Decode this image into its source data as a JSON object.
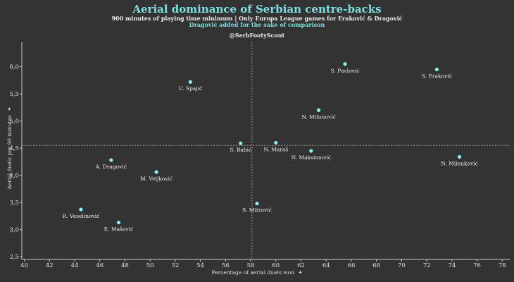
{
  "chart_data": {
    "type": "scatter",
    "title": "Aerial dominance of Serbian centre-backs",
    "subtitle": "900 minutes of playing time minimum | Only Europa League games for Eraković & Dragović",
    "subtitle2": "Dragović added for the sake of comparison",
    "annotation": "@SerbFootyScout",
    "xlabel": "Percentage of aerial duels won",
    "ylabel": "Aerial duels per 90 minutes",
    "label_icon": "✦",
    "xlim": [
      39.8,
      78.6
    ],
    "ylim": [
      2.45,
      6.45
    ],
    "xticks": [
      40,
      42,
      44,
      46,
      48,
      50,
      52,
      54,
      56,
      58,
      60,
      62,
      64,
      66,
      68,
      70,
      72,
      74,
      76,
      78
    ],
    "yticks": [
      2.5,
      3.0,
      3.5,
      4.0,
      4.5,
      5.0,
      5.5,
      6.0
    ],
    "xtick_labels": [
      "40",
      "42",
      "44",
      "46",
      "48",
      "50",
      "52",
      "54",
      "56",
      "58",
      "60",
      "62",
      "64",
      "66",
      "68",
      "70",
      "72",
      "74",
      "76",
      "78"
    ],
    "ytick_labels": [
      "2,5",
      "3,0",
      "3,5",
      "4,0",
      "4,5",
      "5,0",
      "5,5",
      "6,0"
    ],
    "ref_x": 58.1,
    "ref_y": 4.55,
    "grid": false,
    "points": [
      {
        "name": "S. Pavlović",
        "x": 65.5,
        "y": 6.05
      },
      {
        "name": "S. Eraković",
        "x": 72.8,
        "y": 5.95
      },
      {
        "name": "U. Spajić",
        "x": 53.2,
        "y": 5.72
      },
      {
        "name": "N. Milunović",
        "x": 63.4,
        "y": 5.2
      },
      {
        "name": "S. Babić",
        "x": 57.2,
        "y": 4.59
      },
      {
        "name": "N. Maraš",
        "x": 60.0,
        "y": 4.6
      },
      {
        "name": "N. Maksimović",
        "x": 62.8,
        "y": 4.45
      },
      {
        "name": "N. Milenković",
        "x": 74.6,
        "y": 4.34
      },
      {
        "name": "A. Dragović",
        "x": 46.9,
        "y": 4.28
      },
      {
        "name": "M. Veljković",
        "x": 50.5,
        "y": 4.06
      },
      {
        "name": "S. Mitrović",
        "x": 58.5,
        "y": 3.48
      },
      {
        "name": "R. Veselinović",
        "x": 44.5,
        "y": 3.37
      },
      {
        "name": "E. Mašović",
        "x": 47.5,
        "y": 3.13
      }
    ]
  }
}
